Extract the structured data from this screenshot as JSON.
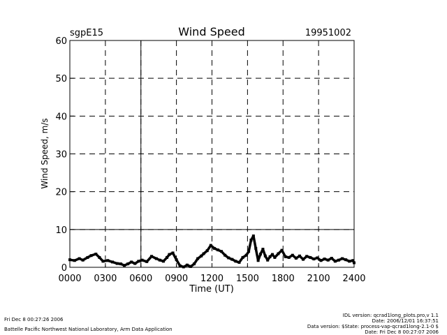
{
  "chart_data": {
    "type": "line",
    "title": "Wind Speed",
    "left_label": "sgpE15",
    "right_label": "19951002",
    "xlabel": "Time (UT)",
    "ylabel": "Wind Speed, m/s",
    "xlim": [
      0,
      24
    ],
    "ylim": [
      0,
      60
    ],
    "x_ticks": [
      0,
      3,
      6,
      9,
      12,
      15,
      18,
      21,
      24
    ],
    "x_tick_labels": [
      "0000",
      "0300",
      "0600",
      "0900",
      "1200",
      "1500",
      "1800",
      "2100",
      "2400"
    ],
    "y_ticks": [
      0,
      10,
      20,
      30,
      40,
      50,
      60
    ],
    "y_tick_labels": [
      "0",
      "10",
      "20",
      "30",
      "40",
      "50",
      "60"
    ],
    "grid": "dashed",
    "reference_lines": {
      "y": [
        10
      ],
      "x": [
        6
      ]
    },
    "series": [
      {
        "x": [
          0.0,
          0.4,
          0.8,
          1.1,
          1.5,
          1.8,
          2.2,
          2.5,
          2.8,
          3.2,
          3.6,
          4.0,
          4.3,
          4.6,
          4.9,
          5.2,
          5.5,
          5.8,
          6.1,
          6.5,
          6.9,
          7.3,
          7.6,
          7.9,
          8.2,
          8.4,
          8.7,
          9.0,
          9.3,
          9.6,
          9.9,
          10.2,
          10.5,
          10.8,
          11.1,
          11.3,
          11.6,
          11.9,
          12.2,
          12.5,
          12.8,
          13.1,
          13.4,
          13.7,
          14.0,
          14.3,
          14.6,
          14.9,
          15.1,
          15.3,
          15.5,
          15.7,
          15.9,
          16.1,
          16.3,
          16.5,
          16.7,
          16.9,
          17.1,
          17.3,
          17.6,
          17.9,
          18.2,
          18.5,
          18.8,
          19.1,
          19.4,
          19.7,
          20.0,
          20.3,
          20.6,
          20.9,
          21.2,
          21.5,
          21.8,
          22.1,
          22.4,
          22.7,
          23.0,
          23.3,
          23.6,
          23.9,
          24.0
        ],
        "y": [
          2.0,
          1.8,
          2.3,
          1.9,
          2.6,
          3.1,
          3.5,
          2.6,
          1.6,
          1.8,
          1.4,
          1.0,
          0.9,
          0.5,
          0.9,
          1.4,
          1.0,
          1.6,
          1.9,
          1.5,
          2.9,
          2.3,
          1.9,
          1.6,
          2.6,
          3.4,
          3.8,
          2.0,
          0.4,
          0.1,
          0.6,
          0.2,
          0.9,
          2.3,
          3.0,
          3.6,
          4.4,
          5.8,
          5.0,
          4.6,
          4.2,
          3.2,
          2.5,
          2.1,
          1.6,
          1.3,
          2.6,
          3.2,
          4.2,
          7.2,
          8.3,
          5.0,
          1.8,
          3.5,
          4.8,
          3.0,
          1.9,
          2.8,
          3.4,
          2.6,
          3.6,
          4.5,
          2.8,
          2.6,
          3.2,
          2.4,
          3.0,
          2.1,
          2.9,
          2.6,
          2.2,
          2.5,
          1.8,
          2.2,
          1.9,
          2.4,
          1.6,
          1.9,
          2.3,
          2.0,
          1.6,
          1.8,
          1.2
        ]
      }
    ]
  },
  "footer": {
    "left_line1": "Fri Dec  8 00:27:26 2006",
    "left_line2": "Battelle Pacific Northwest National Laboratory, Arm Data Application",
    "right_line1": "IDL version: qcrad1long_plots.pro,v 1.1",
    "right_line2": "Date: 2006/12/01 16:37:51",
    "right_line3": "Data version: $State: process-vap-qcrad1long-2.1-0 $",
    "right_line4": "Date: Fri Dec  8 00:27:07 2006"
  }
}
